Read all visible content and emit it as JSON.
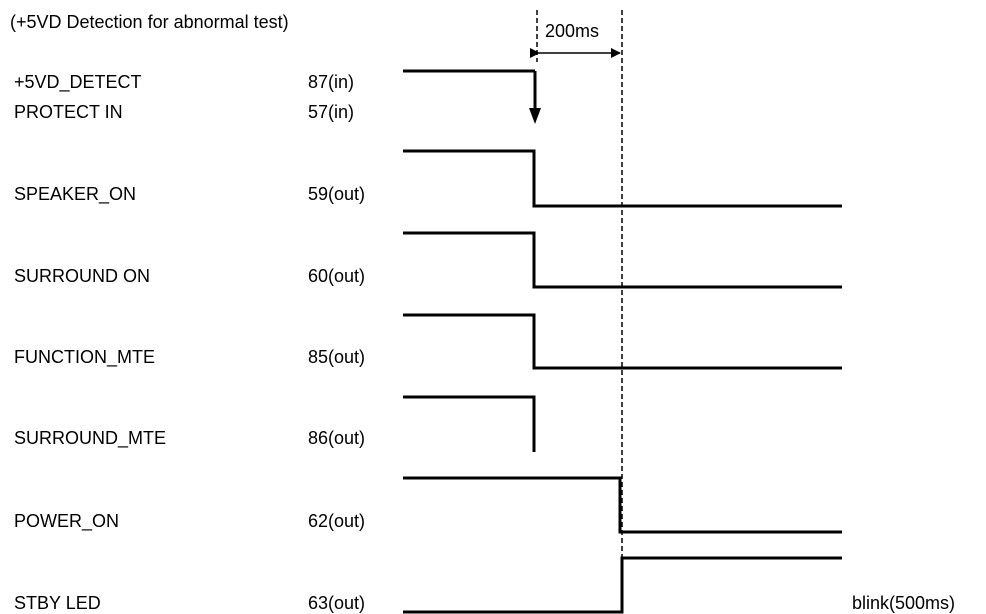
{
  "header": {
    "title": "(+5VD Detection for abnormal test)"
  },
  "timing": {
    "delay_label": "200ms"
  },
  "signals": [
    {
      "name": "+5VD_DETECT",
      "pin": "87(in)"
    },
    {
      "name": "PROTECT IN",
      "pin": "57(in)"
    },
    {
      "name": "SPEAKER_ON",
      "pin": "59(out)"
    },
    {
      "name": "SURROUND ON",
      "pin": "60(out)"
    },
    {
      "name": "FUNCTION_MTE",
      "pin": "85(out)"
    },
    {
      "name": "SURROUND_MTE",
      "pin": "86(out)"
    },
    {
      "name": "POWER_ON",
      "pin": "62(out)"
    },
    {
      "name": "STBY LED",
      "pin": "63(out)"
    }
  ],
  "notes": {
    "stby_led_note": "blink(500ms)"
  }
}
